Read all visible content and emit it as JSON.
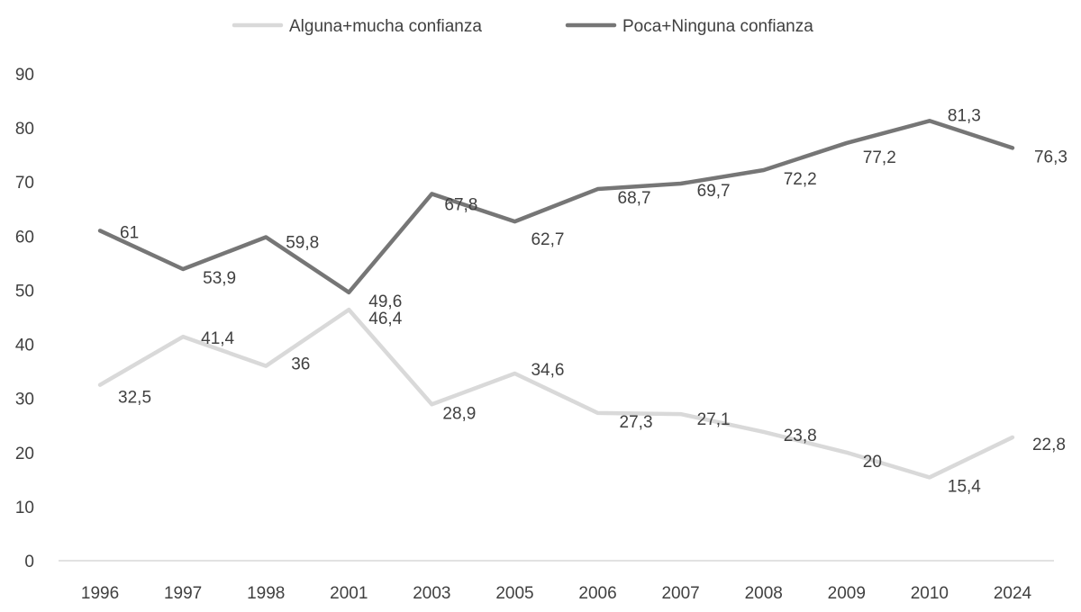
{
  "chart_data": {
    "type": "line",
    "title": "",
    "xlabel": "",
    "ylabel": "",
    "categories": [
      "1996",
      "1997",
      "1998",
      "2001",
      "2003",
      "2005",
      "2006",
      "2007",
      "2008",
      "2009",
      "2010",
      "2024"
    ],
    "ylim": [
      0,
      90
    ],
    "yticks": [
      0,
      10,
      20,
      30,
      40,
      50,
      60,
      70,
      80,
      90
    ],
    "grid": false,
    "legend": "top",
    "series": [
      {
        "name": "Alguna+mucha confianza",
        "color": "#d9d9d9",
        "values": [
          32.5,
          41.4,
          36,
          46.4,
          28.9,
          34.6,
          27.3,
          27.1,
          23.8,
          20,
          15.4,
          22.8
        ],
        "labels": [
          "32,5",
          "41,4",
          "36",
          "46,4",
          "28,9",
          "34,6",
          "27,3",
          "27,1",
          "23,8",
          "20",
          "15,4",
          "22,8"
        ]
      },
      {
        "name": "Poca+Ninguna confianza",
        "color": "#767676",
        "values": [
          61,
          53.9,
          59.8,
          49.6,
          67.8,
          62.7,
          68.7,
          69.7,
          72.2,
          77.2,
          81.3,
          76.3
        ],
        "labels": [
          "61",
          "53,9",
          "59,8",
          "49,6",
          "67,8",
          "62,7",
          "68,7",
          "69,7",
          "72,2",
          "77,2",
          "81,3",
          "76,3"
        ]
      }
    ]
  }
}
